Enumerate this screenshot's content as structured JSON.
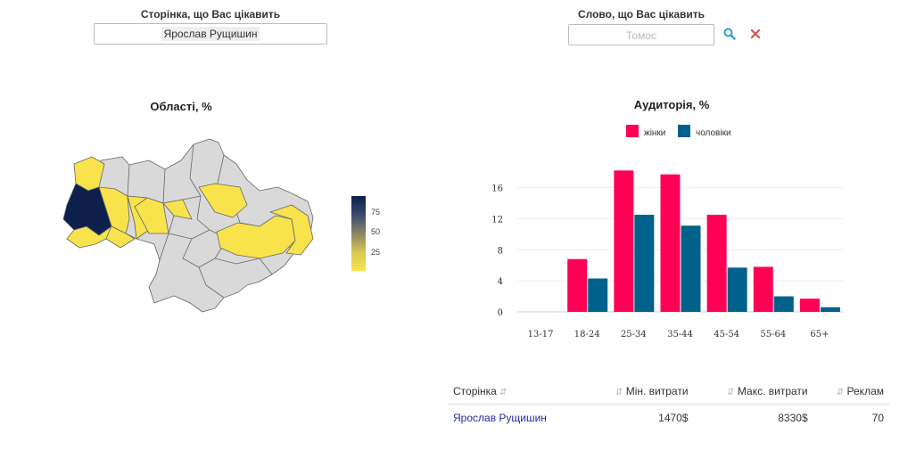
{
  "page_filter": {
    "label": "Сторінка, що Вас цікавить",
    "selected": "Ярослав Рущишин"
  },
  "word_filter": {
    "label": "Слово, що Вас цікавить",
    "placeholder": "Томос",
    "search_icon": "search-icon",
    "clear_icon": "close-icon"
  },
  "map": {
    "title": "Області, %",
    "colorbar_ticks": [
      "75",
      "50",
      "25"
    ],
    "colors": {
      "high": "#0d1f4a",
      "low": "#f9e34c",
      "none": "#d9d9d9"
    }
  },
  "chart_data": {
    "type": "bar",
    "title": "Аудиторія, %",
    "categories": [
      "13-17",
      "18-24",
      "25-34",
      "35-44",
      "45-54",
      "55-64",
      "65+"
    ],
    "series": [
      {
        "name": "жінки",
        "color": "#ff0055",
        "values": [
          0,
          6.8,
          18.2,
          17.7,
          12.5,
          5.8,
          1.7
        ]
      },
      {
        "name": "чоловіки",
        "color": "#00628a",
        "values": [
          0,
          4.3,
          12.5,
          11.1,
          5.7,
          2.0,
          0.6
        ]
      }
    ],
    "yticks": [
      0,
      4,
      8,
      12,
      16
    ],
    "ylim": [
      0,
      19.5
    ],
    "legend": "top-center",
    "grid": true
  },
  "table": {
    "columns": [
      "Сторінка",
      "Мін. витрати",
      "Макс. витрати",
      "Реклам"
    ],
    "rows": [
      {
        "page": "Ярослав Рущишин",
        "min": "1470$",
        "max": "8330$",
        "ads": "70"
      }
    ]
  }
}
